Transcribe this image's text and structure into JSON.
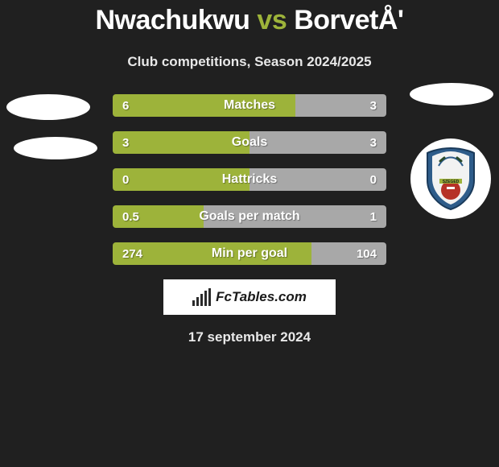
{
  "title": {
    "player1": "Nwachukwu",
    "vs": "vs",
    "player2": "BorvetÅ'"
  },
  "subtitle": "Club competitions, Season 2024/2025",
  "date": "17 september 2024",
  "brand_label": "FcTables.com",
  "colors": {
    "accent": "#9db33a",
    "bg": "#202020",
    "text": "#ffffff",
    "subtext": "#e8e8e8",
    "brand_bg": "#ffffff"
  },
  "stats": [
    {
      "label": "Matches",
      "left_value": "6",
      "right_value": "3",
      "left_width_pct": 66.7,
      "right_width_pct": 33.3,
      "left_color": "#9db33a",
      "right_color": "#a8a8a8"
    },
    {
      "label": "Goals",
      "left_value": "3",
      "right_value": "3",
      "left_width_pct": 50,
      "right_width_pct": 50,
      "left_color": "#9db33a",
      "right_color": "#a8a8a8"
    },
    {
      "label": "Hattricks",
      "left_value": "0",
      "right_value": "0",
      "left_width_pct": 50,
      "right_width_pct": 50,
      "left_color": "#9db33a",
      "right_color": "#a8a8a8"
    },
    {
      "label": "Goals per match",
      "left_value": "0.5",
      "right_value": "1",
      "left_width_pct": 33.3,
      "right_width_pct": 66.7,
      "left_color": "#9db33a",
      "right_color": "#a8a8a8"
    },
    {
      "label": "Min per goal",
      "left_value": "274",
      "right_value": "104",
      "left_width_pct": 72.5,
      "right_width_pct": 27.5,
      "left_color": "#9db33a",
      "right_color": "#a8a8a8"
    }
  ]
}
